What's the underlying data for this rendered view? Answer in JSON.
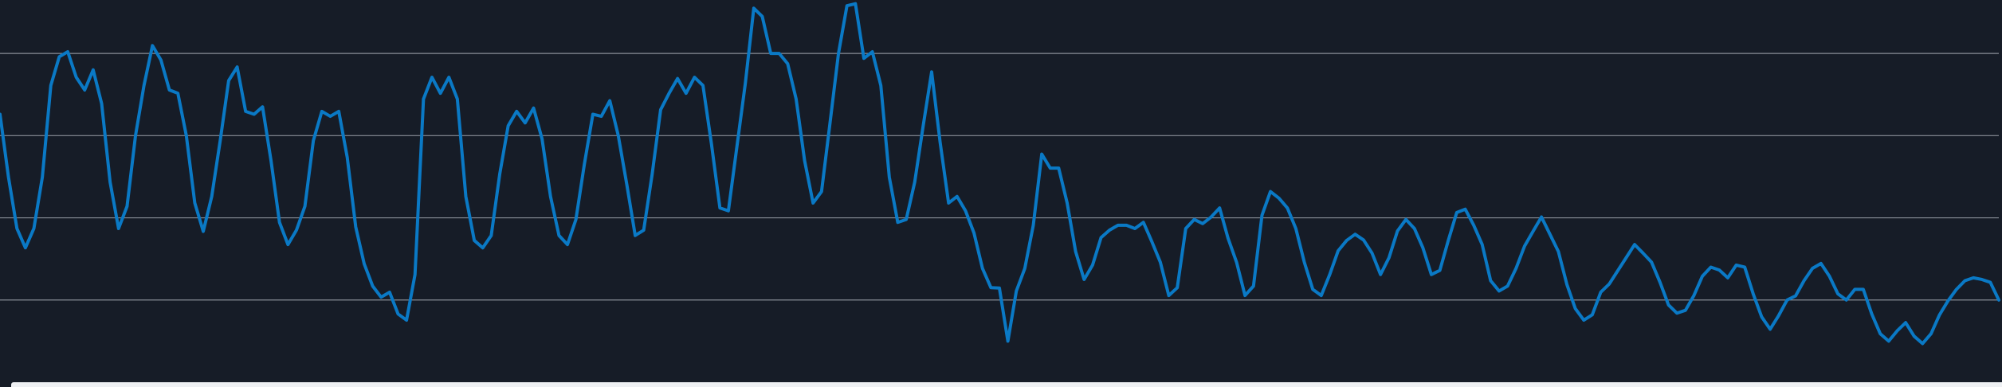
{
  "colors": {
    "background": "#161c27",
    "gridline": "#8a8f99",
    "series": "#0a79c5",
    "footer": "#eef0f3"
  },
  "chart_data": {
    "type": "line",
    "title": "",
    "xlabel": "",
    "ylabel": "",
    "grid": true,
    "legend": "none",
    "xlim": [
      0,
      400
    ],
    "ylim": [
      0,
      93
    ],
    "y_gridlines": [
      20,
      40,
      60,
      80
    ],
    "series": [
      {
        "values": [
          65.2,
          49.9,
          37.4,
          32.7,
          37.4,
          49.9,
          72.2,
          79.2,
          80.4,
          74.2,
          71.1,
          76.0,
          67.8,
          48.7,
          37.4,
          42.8,
          60.0,
          72.2,
          81.9,
          78.4,
          71.1,
          70.3,
          60.0,
          43.6,
          36.7,
          45.2,
          58.8,
          73.4,
          76.7,
          65.9,
          65.2,
          67.0,
          53.9,
          38.9,
          33.5,
          37.0,
          42.8,
          58.8,
          65.9,
          64.7,
          65.9,
          54.7,
          37.8,
          28.8,
          23.4,
          20.7,
          21.9,
          16.6,
          15.1,
          26.2,
          68.9,
          74.2,
          70.3,
          74.2,
          68.9,
          45.2,
          34.5,
          32.7,
          35.7,
          50.6,
          62.4,
          65.9,
          63.1,
          66.7,
          59.2,
          45.2,
          35.7,
          33.5,
          39.6,
          53.1,
          65.2,
          64.7,
          68.5,
          60.0,
          48.2,
          35.7,
          37.0,
          50.6,
          66.3,
          70.3,
          73.9,
          70.3,
          74.2,
          72.2,
          58.0,
          42.4,
          41.7,
          57.2,
          72.7,
          91.0,
          89.0,
          80.0,
          80.0,
          77.5,
          68.9,
          53.9,
          43.6,
          46.4,
          63.1,
          80.0,
          91.6,
          92.1,
          78.8,
          80.4,
          72.2,
          49.9,
          38.9,
          39.6,
          48.7,
          62.4,
          75.5,
          58.4,
          43.6,
          45.2,
          41.7,
          36.3,
          27.7,
          23.0,
          22.9,
          10.0,
          22.2,
          27.7,
          38.2,
          55.5,
          52.1,
          52.1,
          43.6,
          31.8,
          25.0,
          28.5,
          35.2,
          37.0,
          38.2,
          38.2,
          37.4,
          38.9,
          34.2,
          29.2,
          21.1,
          23.0,
          37.4,
          39.6,
          38.6,
          40.2,
          42.4,
          35.0,
          29.2,
          21.1,
          23.4,
          40.6,
          46.4,
          44.8,
          42.4,
          37.4,
          29.2,
          22.6,
          21.1,
          26.2,
          32.0,
          34.5,
          36.0,
          34.6,
          31.4,
          26.2,
          30.3,
          36.8,
          39.6,
          37.4,
          32.7,
          26.2,
          27.2,
          34.5,
          41.3,
          42.1,
          38.2,
          33.5,
          24.7,
          22.2,
          23.4,
          27.7,
          33.1,
          36.7,
          40.2,
          36.0,
          31.8,
          23.8,
          17.9,
          15.1,
          16.4,
          21.9,
          23.9,
          27.1,
          30.3,
          33.5,
          31.4,
          29.2,
          24.3,
          18.8,
          16.8,
          17.5,
          21.1,
          25.8,
          28.0,
          27.3,
          25.4,
          28.5,
          28.0,
          21.5,
          15.9,
          12.9,
          16.2,
          20.0,
          21.0,
          24.7,
          27.7,
          28.9,
          25.8,
          21.5,
          20.0,
          22.6,
          22.6,
          16.6,
          11.8,
          10.0,
          12.5,
          14.5,
          11.2,
          9.4,
          11.8,
          16.4,
          19.8,
          22.6,
          24.7,
          25.4,
          25.0,
          24.3,
          20.0
        ]
      }
    ]
  }
}
